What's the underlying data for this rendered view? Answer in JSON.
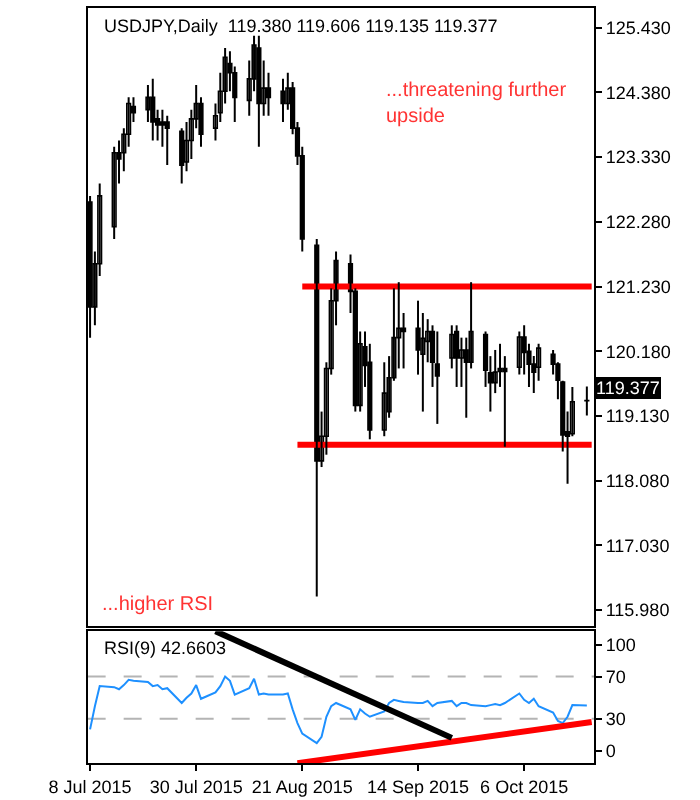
{
  "chart_data": [
    {
      "type": "candlestick",
      "title": "USDJPY,Daily  119.380 119.606 119.135 119.377",
      "color": "#000000",
      "x": [
        "2015-07-08",
        "2015-07-09",
        "2015-07-10",
        "2015-07-13",
        "2015-07-14",
        "2015-07-15",
        "2015-07-16",
        "2015-07-17",
        "2015-07-20",
        "2015-07-21",
        "2015-07-22",
        "2015-07-23",
        "2015-07-24",
        "2015-07-27",
        "2015-07-28",
        "2015-07-29",
        "2015-07-30",
        "2015-07-31",
        "2015-08-03",
        "2015-08-04",
        "2015-08-05",
        "2015-08-06",
        "2015-08-07",
        "2015-08-10",
        "2015-08-11",
        "2015-08-12",
        "2015-08-13",
        "2015-08-14",
        "2015-08-17",
        "2015-08-18",
        "2015-08-19",
        "2015-08-20",
        "2015-08-21",
        "2015-08-24",
        "2015-08-25",
        "2015-08-26",
        "2015-08-27",
        "2015-08-28",
        "2015-08-31",
        "2015-09-01",
        "2015-09-02",
        "2015-09-03",
        "2015-09-04",
        "2015-09-07",
        "2015-09-08",
        "2015-09-09",
        "2015-09-10",
        "2015-09-11",
        "2015-09-14",
        "2015-09-15",
        "2015-09-16",
        "2015-09-17",
        "2015-09-18",
        "2015-09-21",
        "2015-09-22",
        "2015-09-23",
        "2015-09-24",
        "2015-09-25",
        "2015-09-28",
        "2015-09-29",
        "2015-09-30",
        "2015-10-01",
        "2015-10-02",
        "2015-10-05",
        "2015-10-06",
        "2015-10-07",
        "2015-10-08",
        "2015-10-09",
        "2015-10-12",
        "2015-10-13",
        "2015-10-14",
        "2015-10-15",
        "2015-10-16",
        "2015-10-19"
      ],
      "ohlc": [
        [
          122.6,
          122.7,
          120.4,
          120.9
        ],
        [
          120.9,
          121.8,
          120.6,
          121.6
        ],
        [
          121.6,
          122.9,
          121.4,
          122.7
        ],
        [
          122.2,
          123.5,
          122.0,
          123.4
        ],
        [
          123.3,
          123.6,
          122.9,
          123.4
        ],
        [
          123.4,
          123.8,
          123.1,
          123.7
        ],
        [
          123.7,
          124.3,
          123.5,
          124.2
        ],
        [
          124.15,
          124.3,
          123.9,
          124.05
        ],
        [
          124.1,
          124.5,
          123.9,
          124.3
        ],
        [
          124.3,
          124.6,
          123.6,
          123.9
        ],
        [
          123.95,
          124.1,
          123.6,
          123.85
        ],
        [
          123.9,
          124.1,
          123.5,
          123.85
        ],
        [
          123.9,
          124.0,
          123.2,
          123.8
        ],
        [
          123.75,
          123.8,
          122.9,
          123.2
        ],
        [
          123.25,
          123.9,
          123.1,
          123.6
        ],
        [
          123.6,
          124.1,
          123.3,
          123.95
        ],
        [
          123.95,
          124.5,
          123.8,
          124.2
        ],
        [
          124.2,
          124.3,
          123.5,
          123.7
        ],
        [
          123.8,
          124.2,
          123.6,
          124.0
        ],
        [
          124.05,
          124.7,
          123.9,
          124.4
        ],
        [
          124.4,
          125.1,
          124.2,
          124.95
        ],
        [
          124.85,
          125.05,
          124.4,
          124.7
        ],
        [
          124.7,
          124.8,
          123.9,
          124.3
        ],
        [
          124.25,
          124.9,
          124.0,
          124.6
        ],
        [
          124.6,
          125.3,
          124.4,
          125.15
        ],
        [
          125.1,
          125.3,
          123.5,
          124.2
        ],
        [
          124.2,
          124.9,
          124.0,
          124.45
        ],
        [
          124.45,
          124.7,
          124.0,
          124.3
        ],
        [
          124.2,
          124.6,
          123.9,
          124.4
        ],
        [
          124.2,
          124.7,
          124.1,
          124.45
        ],
        [
          124.45,
          124.55,
          123.7,
          123.8
        ],
        [
          123.8,
          123.9,
          123.2,
          123.35
        ],
        [
          123.35,
          123.5,
          121.8,
          122.0
        ],
        [
          121.9,
          122.0,
          116.2,
          118.4
        ],
        [
          118.4,
          119.2,
          118.3,
          118.8
        ],
        [
          118.8,
          120.0,
          118.5,
          119.9
        ],
        [
          119.9,
          121.2,
          119.8,
          121.0
        ],
        [
          121.0,
          121.8,
          120.6,
          121.65
        ],
        [
          121.6,
          121.75,
          120.8,
          121.15
        ],
        [
          121.15,
          121.2,
          119.2,
          119.3
        ],
        [
          119.3,
          120.5,
          119.2,
          120.3
        ],
        [
          120.25,
          120.5,
          119.6,
          119.95
        ],
        [
          120.0,
          120.3,
          118.75,
          118.9
        ],
        [
          118.9,
          120.0,
          118.8,
          119.5
        ],
        [
          119.2,
          120.1,
          119.1,
          119.75
        ],
        [
          119.75,
          121.2,
          119.7,
          120.4
        ],
        [
          120.4,
          121.3,
          119.9,
          120.55
        ],
        [
          120.55,
          120.8,
          119.9,
          120.5
        ],
        [
          120.55,
          121.0,
          119.8,
          120.2
        ],
        [
          120.13,
          120.8,
          119.2,
          120.39
        ],
        [
          120.34,
          120.7,
          120.0,
          120.5
        ],
        [
          120.5,
          120.6,
          119.6,
          120.0
        ],
        [
          119.97,
          120.5,
          119.0,
          119.78
        ],
        [
          120.07,
          120.6,
          119.9,
          120.45
        ],
        [
          120.5,
          120.6,
          119.6,
          120.07
        ],
        [
          120.07,
          120.4,
          119.6,
          120.2
        ],
        [
          120.2,
          120.4,
          119.1,
          120.0
        ],
        [
          120.0,
          121.3,
          119.9,
          120.5
        ],
        [
          120.45,
          120.5,
          119.6,
          119.87
        ],
        [
          119.83,
          120.1,
          119.2,
          119.67
        ],
        [
          119.67,
          120.2,
          119.5,
          119.84
        ],
        [
          119.85,
          120.3,
          119.6,
          119.9
        ],
        [
          119.9,
          120.1,
          118.63,
          119.85
        ],
        [
          119.92,
          120.5,
          119.8,
          120.41
        ],
        [
          120.41,
          120.6,
          119.8,
          120.16
        ],
        [
          120.18,
          120.3,
          119.6,
          119.97
        ],
        [
          119.97,
          120.1,
          119.5,
          119.84
        ],
        [
          119.92,
          120.3,
          119.7,
          120.23
        ],
        [
          120.13,
          120.2,
          119.8,
          119.97
        ],
        [
          119.97,
          120.0,
          119.4,
          119.71
        ],
        [
          119.68,
          119.7,
          118.55,
          118.82
        ],
        [
          118.87,
          119.2,
          118.03,
          118.8
        ],
        [
          118.84,
          119.6,
          118.8,
          119.36
        ],
        [
          119.38,
          119.606,
          119.135,
          119.377
        ]
      ],
      "series": [
        {
          "type": "line",
          "x": [
            "2015-08-21",
            "2015-10-20"
          ],
          "values": [
            121.23,
            121.23
          ],
          "color": "#ff0000"
        },
        {
          "type": "line",
          "x": [
            "2015-08-20",
            "2015-10-20"
          ],
          "values": [
            118.66,
            118.66
          ],
          "color": "#ff0000"
        }
      ],
      "xlim": [
        "2015-07-07T12:00",
        "2015-10-20T12:00"
      ],
      "ylim": [
        115.72,
        125.75
      ],
      "yticks": [
        {
          "value": 115.98,
          "label": "115.980"
        },
        {
          "value": 117.03,
          "label": "117.030"
        },
        {
          "value": 118.08,
          "label": "118.080"
        },
        {
          "value": 119.13,
          "label": "119.130"
        },
        {
          "value": 120.18,
          "label": "120.180"
        },
        {
          "value": 121.23,
          "label": "121.230"
        },
        {
          "value": 122.28,
          "label": "122.280"
        },
        {
          "value": 123.33,
          "label": "123.330"
        },
        {
          "value": 124.38,
          "label": "124.380"
        },
        {
          "value": 125.43,
          "label": "125.430"
        }
      ],
      "annotations": [
        "...threatening further\nupside",
        "...higher RSI",
        "119.377"
      ],
      "tick_labels": "y"
    },
    {
      "type": "line",
      "title": "RSI(9) 42.6603",
      "x": [
        "2015-07-08",
        "2015-07-09",
        "2015-07-10",
        "2015-07-13",
        "2015-07-14",
        "2015-07-15",
        "2015-07-16",
        "2015-07-17",
        "2015-07-20",
        "2015-07-21",
        "2015-07-22",
        "2015-07-23",
        "2015-07-24",
        "2015-07-27",
        "2015-07-28",
        "2015-07-29",
        "2015-07-30",
        "2015-07-31",
        "2015-08-03",
        "2015-08-04",
        "2015-08-05",
        "2015-08-06",
        "2015-08-07",
        "2015-08-10",
        "2015-08-11",
        "2015-08-12",
        "2015-08-13",
        "2015-08-14",
        "2015-08-17",
        "2015-08-18",
        "2015-08-19",
        "2015-08-20",
        "2015-08-21",
        "2015-08-24",
        "2015-08-25",
        "2015-08-26",
        "2015-08-27",
        "2015-08-28",
        "2015-08-31",
        "2015-09-01",
        "2015-09-02",
        "2015-09-03",
        "2015-09-04",
        "2015-09-07",
        "2015-09-08",
        "2015-09-09",
        "2015-09-10",
        "2015-09-11",
        "2015-09-14",
        "2015-09-15",
        "2015-09-16",
        "2015-09-17",
        "2015-09-18",
        "2015-09-21",
        "2015-09-22",
        "2015-09-23",
        "2015-09-24",
        "2015-09-25",
        "2015-09-28",
        "2015-09-29",
        "2015-09-30",
        "2015-10-01",
        "2015-10-02",
        "2015-10-05",
        "2015-10-06",
        "2015-10-07",
        "2015-10-08",
        "2015-10-09",
        "2015-10-12",
        "2015-10-13",
        "2015-10-14",
        "2015-10-15",
        "2015-10-16",
        "2015-10-19"
      ],
      "series": [
        {
          "color": "#1e90ff",
          "values": [
            20,
            42,
            61,
            60,
            58,
            62,
            67,
            66,
            65,
            61,
            62,
            58,
            59,
            45,
            50,
            54,
            62,
            49,
            55,
            61,
            70,
            66,
            53,
            59,
            68,
            53,
            54,
            53,
            53,
            54,
            39,
            26,
            16,
            7,
            13,
            32,
            42,
            45,
            39,
            29,
            39,
            35,
            32,
            37,
            45,
            48,
            47,
            46,
            45,
            45,
            47,
            42,
            45,
            47,
            42,
            45,
            45,
            43,
            42,
            43,
            44,
            43,
            45,
            54,
            48,
            45,
            49,
            42,
            36,
            28,
            26,
            32,
            43,
            42.6603
          ]
        },
        {
          "type": "line",
          "x": [
            "2015-08-20",
            "2015-10-20"
          ],
          "values": [
            -12,
            27
          ],
          "color": "#ff0000"
        },
        {
          "type": "line",
          "x": [
            "2015-08-03",
            "2015-09-21"
          ],
          "values": [
            113,
            12
          ],
          "color": "#000000"
        }
      ],
      "ref_lines": [
        {
          "axis": "y",
          "value": 70,
          "color": "#b4b4b4",
          "line_style": "dashed"
        },
        {
          "axis": "y",
          "value": 30,
          "color": "#b4b4b4",
          "line_style": "dashed"
        }
      ],
      "xlim": [
        "2015-07-07T12:00",
        "2015-10-20T12:00"
      ],
      "xticks": [
        {
          "value": "2015-07-08",
          "label": "8 Jul 2015"
        },
        {
          "value": "2015-07-30",
          "label": "30 Jul 2015"
        },
        {
          "value": "2015-08-21",
          "label": "21 Aug 2015"
        },
        {
          "value": "2015-09-14",
          "label": "14 Sep 2015"
        },
        {
          "value": "2015-10-06",
          "label": "6 Oct 2015"
        }
      ],
      "ylim": [
        -12,
        113
      ],
      "yticks": [
        0,
        30,
        70,
        100
      ]
    }
  ]
}
